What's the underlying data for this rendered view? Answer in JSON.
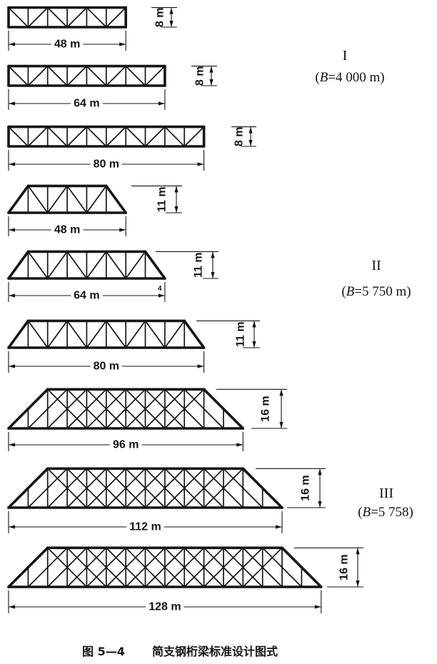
{
  "groups": [
    {
      "numeral": "I",
      "note": {
        "open": "(",
        "var": "B",
        "rest": "=4 000 m)"
      },
      "trusses": [
        {
          "span": 48,
          "height": 8,
          "span_label": "48 m",
          "height_label": "8 m"
        },
        {
          "span": 64,
          "height": 8,
          "span_label": "64 m",
          "height_label": "8 m"
        },
        {
          "span": 80,
          "height": 8,
          "span_label": "80 m",
          "height_label": "8 m"
        }
      ]
    },
    {
      "numeral": "II",
      "note": {
        "open": "(",
        "var": "B",
        "rest": "=5 750 m)"
      },
      "trusses": [
        {
          "span": 48,
          "height": 11,
          "span_label": "48 m",
          "height_label": "11 m"
        },
        {
          "span": 64,
          "height": 11,
          "span_label": "64 m",
          "height_label": "11 m"
        },
        {
          "span": 80,
          "height": 11,
          "span_label": "80 m",
          "height_label": "11 m"
        }
      ],
      "stray_mark": "4"
    },
    {
      "numeral": "III",
      "note": {
        "open": "(",
        "var": "B",
        "rest": "=5 758)"
      },
      "trusses": [
        {
          "span": 96,
          "height": 16,
          "span_label": "96 m",
          "height_label": "16 m"
        },
        {
          "span": 112,
          "height": 16,
          "span_label": "112 m",
          "height_label": "16 m"
        },
        {
          "span": 128,
          "height": 16,
          "span_label": "128 m",
          "height_label": "16 m"
        }
      ]
    }
  ],
  "caption": {
    "number": "图 5—4",
    "title": "简支钢桁梁标准设计图式"
  }
}
